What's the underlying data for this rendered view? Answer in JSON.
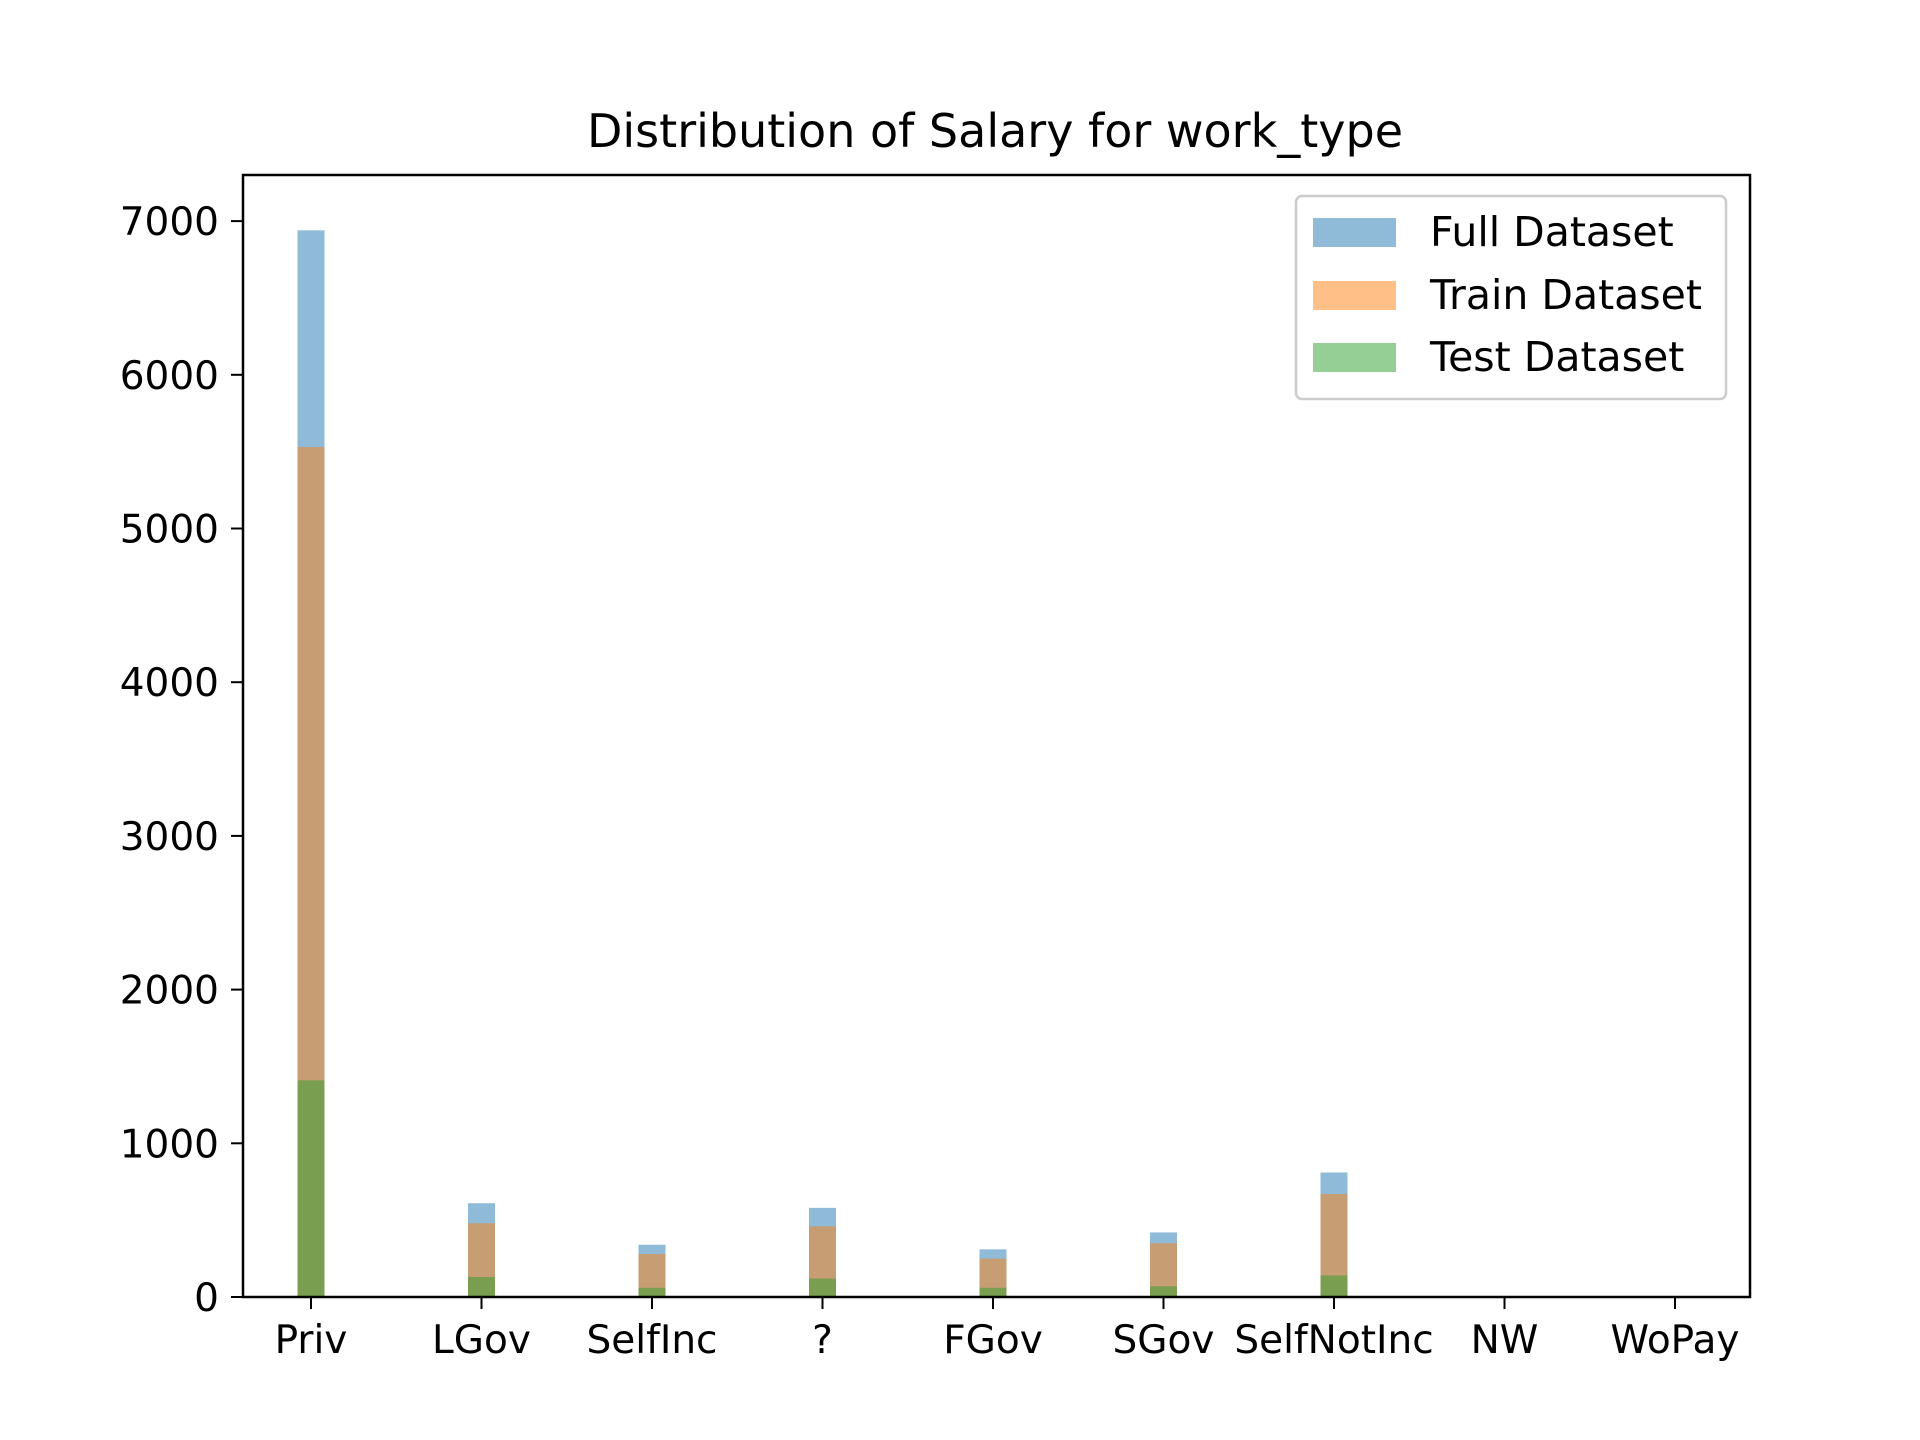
{
  "chart_data": {
    "type": "bar",
    "title": "Distribution of Salary for work_type",
    "xlabel": "",
    "ylabel": "",
    "categories": [
      "Priv",
      "LGov",
      "SelfInc",
      "?",
      "FGov",
      "SGov",
      "SelfNotInc",
      "NW",
      "WoPay"
    ],
    "series": [
      {
        "name": "Full Dataset",
        "color": "#1f77b4",
        "values": [
          6940,
          610,
          340,
          580,
          310,
          420,
          810,
          5,
          5
        ]
      },
      {
        "name": "Train Dataset",
        "color": "#ff7f0e",
        "values": [
          5530,
          480,
          280,
          460,
          250,
          350,
          670,
          4,
          4
        ]
      },
      {
        "name": "Test Dataset",
        "color": "#2ca02c",
        "values": [
          1410,
          130,
          60,
          120,
          60,
          70,
          140,
          1,
          1
        ]
      }
    ],
    "bar_opacity": 0.5,
    "ylim": [
      0,
      7300
    ],
    "yticks": [
      "0",
      "1000",
      "2000",
      "3000",
      "4000",
      "5000",
      "6000",
      "7000"
    ],
    "grid": false,
    "legend_position": "top-right"
  }
}
